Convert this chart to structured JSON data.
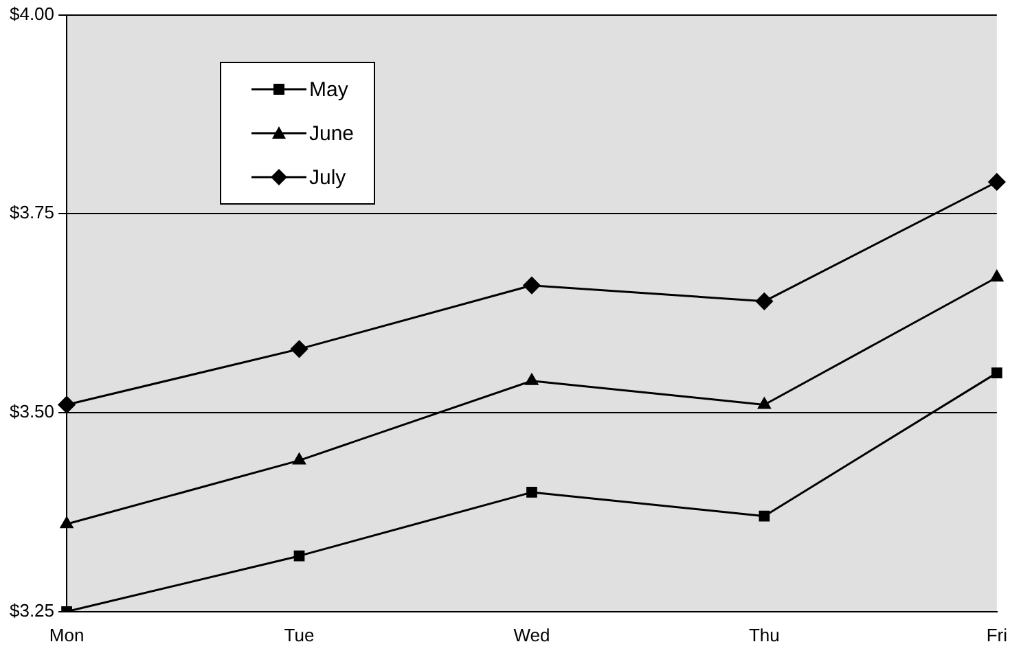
{
  "chart_data": {
    "type": "line",
    "categories": [
      "Mon",
      "Tue",
      "Wed",
      "Thu",
      "Fri"
    ],
    "series": [
      {
        "name": "May",
        "color": "#000000",
        "marker": "square",
        "values": [
          3.25,
          3.32,
          3.4,
          3.37,
          3.55
        ]
      },
      {
        "name": "June",
        "color": "#000000",
        "marker": "triangle",
        "values": [
          3.36,
          3.44,
          3.54,
          3.51,
          3.67
        ]
      },
      {
        "name": "July",
        "color": "#000000",
        "marker": "diamond",
        "values": [
          3.51,
          3.58,
          3.66,
          3.64,
          3.79
        ]
      }
    ],
    "ylim": [
      3.25,
      4.0
    ],
    "yticks": [
      {
        "value": 3.25,
        "label": "$3.25"
      },
      {
        "value": 3.5,
        "label": "$3.50"
      },
      {
        "value": 3.75,
        "label": "$3.75"
      },
      {
        "value": 4.0,
        "label": "$4.00"
      }
    ],
    "grid": "y",
    "legend": "top left",
    "line_style": "solid"
  }
}
